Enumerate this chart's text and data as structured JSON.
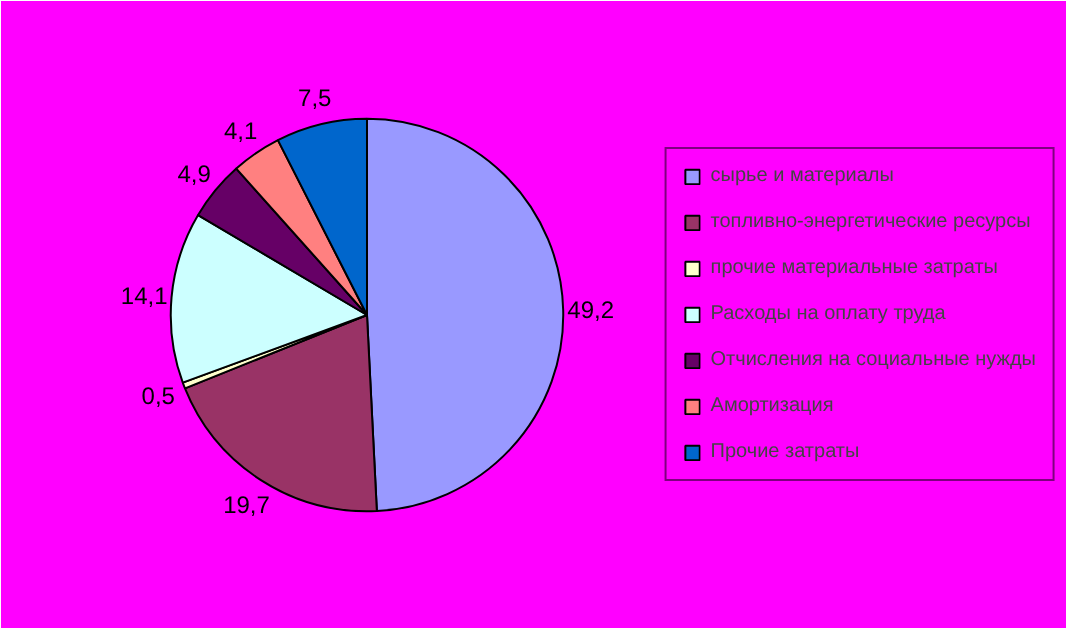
{
  "chart_data": {
    "type": "pie",
    "categories": [
      "сырье и материалы",
      "топливно-энергетические ресурсы",
      "прочие материальные затраты",
      "Расходы на оплату труда",
      "Отчисления на социальные нужды",
      "Амортизация",
      "Прочие затраты"
    ],
    "values": [
      49.2,
      19.7,
      0.5,
      14.1,
      4.9,
      4.1,
      7.5
    ],
    "colors": [
      "#9999ff",
      "#993366",
      "#ffffcc",
      "#ccffff",
      "#660066",
      "#ff8080",
      "#0066cc"
    ],
    "value_labels": [
      "49,2",
      "19,7",
      "0,5",
      "14,1",
      "4,9",
      "4,1",
      "7,5"
    ],
    "legend": "right"
  }
}
